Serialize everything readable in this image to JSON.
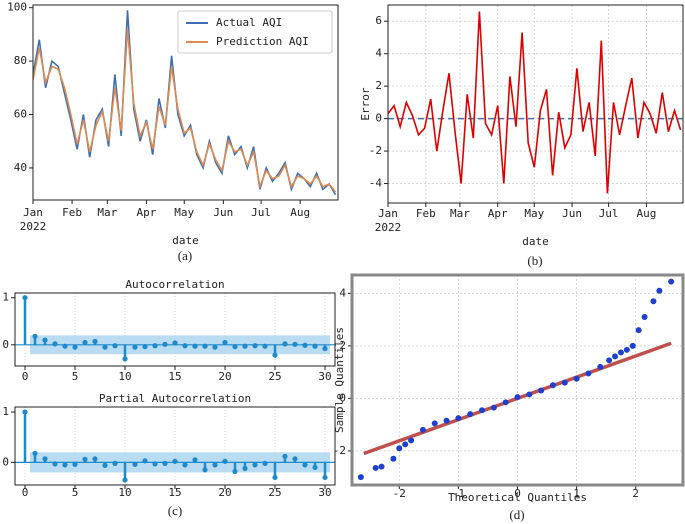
{
  "chart_data": [
    {
      "type": "line",
      "caption": "(a)",
      "xlabel": "date",
      "x_sublabel": "2022",
      "x": [
        0,
        5,
        10,
        15,
        20,
        25,
        30,
        35,
        40,
        45,
        50,
        55,
        60,
        65,
        70,
        75,
        80,
        85,
        90,
        95,
        100,
        105,
        110,
        115,
        120,
        125,
        130,
        135,
        140,
        145,
        150,
        155,
        160,
        165,
        170,
        175,
        180,
        185,
        190,
        195,
        200,
        205,
        210,
        215,
        220,
        225,
        230,
        235,
        240
      ],
      "series": [
        {
          "name": "Actual AQI",
          "color": "#3d6fb6",
          "values": [
            75,
            88,
            70,
            80,
            78,
            68,
            58,
            47,
            60,
            44,
            58,
            62,
            48,
            75,
            52,
            99,
            62,
            50,
            58,
            45,
            66,
            55,
            82,
            60,
            52,
            56,
            45,
            40,
            50,
            42,
            38,
            52,
            45,
            48,
            40,
            48,
            32,
            40,
            35,
            38,
            42,
            32,
            38,
            36,
            33,
            38,
            32,
            34,
            30
          ]
        },
        {
          "name": "Prediction AQI",
          "color": "#e08a4f",
          "values": [
            73,
            85,
            72,
            78,
            77,
            70,
            60,
            49,
            58,
            46,
            56,
            61,
            50,
            70,
            54,
            92,
            64,
            52,
            57,
            47,
            63,
            56,
            78,
            62,
            53,
            55,
            46,
            41,
            49,
            43,
            39,
            50,
            46,
            47,
            41,
            46,
            33,
            39,
            36,
            37,
            41,
            33,
            37,
            36,
            34,
            37,
            33,
            34,
            31
          ]
        }
      ],
      "xlim": [
        0,
        242
      ],
      "xticks": [
        {
          "value": 0,
          "label": "Jan"
        },
        {
          "value": 31,
          "label": "Feb"
        },
        {
          "value": 59,
          "label": "Mar"
        },
        {
          "value": 90,
          "label": "Apr"
        },
        {
          "value": 120,
          "label": "May"
        },
        {
          "value": 151,
          "label": "Jun"
        },
        {
          "value": 181,
          "label": "Jul"
        },
        {
          "value": 212,
          "label": "Aug"
        }
      ],
      "ylim": [
        28,
        101
      ],
      "yticks": [
        40,
        60,
        80,
        100
      ],
      "grid": false,
      "legend": "upper right"
    },
    {
      "type": "line",
      "caption": "(b)",
      "xlabel": "date",
      "x_sublabel": "2022",
      "ylabel": "Error",
      "x": [
        0,
        5,
        10,
        15,
        20,
        25,
        30,
        35,
        40,
        45,
        50,
        55,
        60,
        65,
        70,
        75,
        80,
        85,
        90,
        95,
        100,
        105,
        110,
        115,
        120,
        125,
        130,
        135,
        140,
        145,
        150,
        155,
        160,
        165,
        170,
        175,
        180,
        185,
        190,
        195,
        200,
        205,
        210,
        215,
        220,
        225,
        230,
        235,
        240
      ],
      "series": [
        {
          "color": "#e00000",
          "values": [
            0.3,
            0.8,
            -0.5,
            1.0,
            0.2,
            -1.0,
            -0.6,
            1.2,
            -2.0,
            0.5,
            2.8,
            -0.8,
            -4.0,
            1.5,
            -1.2,
            6.6,
            -0.3,
            -1.0,
            0.8,
            -4.0,
            2.6,
            -0.5,
            5.3,
            -1.5,
            -3.0,
            0.5,
            1.8,
            -3.5,
            0.4,
            -1.8,
            -1.0,
            3.1,
            -0.8,
            1.0,
            -2.3,
            4.8,
            -4.6,
            1.0,
            -1.0,
            0.8,
            2.5,
            -1.2,
            1.0,
            0.3,
            -0.9,
            1.6,
            -0.8,
            0.5,
            -0.7
          ]
        }
      ],
      "reference_line": 0,
      "reference_color": "#4a6fa5",
      "xlim": [
        0,
        242
      ],
      "xticks": [
        {
          "value": 0,
          "label": "Jan"
        },
        {
          "value": 31,
          "label": "Feb"
        },
        {
          "value": 59,
          "label": "Mar"
        },
        {
          "value": 90,
          "label": "Apr"
        },
        {
          "value": 120,
          "label": "May"
        },
        {
          "value": 151,
          "label": "Jun"
        },
        {
          "value": 181,
          "label": "Jul"
        },
        {
          "value": 212,
          "label": "Aug"
        }
      ],
      "ylim": [
        -5.2,
        7
      ],
      "yticks": [
        -4,
        -2,
        0,
        2,
        4,
        6
      ],
      "grid": true
    },
    {
      "type": "stem",
      "title": "Autocorrelation",
      "caption": "(c)",
      "color": "#1f8ac9",
      "band_color": "#a9d3ef",
      "conf_band": 0.2,
      "x": [
        0,
        1,
        2,
        3,
        4,
        5,
        6,
        7,
        8,
        9,
        10,
        11,
        12,
        13,
        14,
        15,
        16,
        17,
        18,
        19,
        20,
        21,
        22,
        23,
        24,
        25,
        26,
        27,
        28,
        29,
        30
      ],
      "values": [
        1,
        0.18,
        0.1,
        0.02,
        -0.03,
        -0.05,
        0.05,
        0.07,
        -0.05,
        -0.02,
        -0.3,
        -0.05,
        -0.04,
        -0.02,
        0.01,
        0.04,
        -0.02,
        -0.03,
        -0.03,
        -0.05,
        0.05,
        -0.04,
        -0.03,
        -0.02,
        -0.03,
        -0.22,
        0.02,
        0.01,
        -0.01,
        -0.03,
        -0.08
      ],
      "xlim": [
        -1,
        31
      ],
      "xticks": [
        0,
        5,
        10,
        15,
        20,
        25,
        30
      ],
      "ylim": [
        -0.45,
        1.1
      ],
      "yticks": [
        0,
        1
      ],
      "grid": true
    },
    {
      "type": "stem",
      "title": "Partial Autocorrelation",
      "color": "#1f8ac9",
      "band_color": "#a9d3ef",
      "conf_band": 0.2,
      "x": [
        0,
        1,
        2,
        3,
        4,
        5,
        6,
        7,
        8,
        9,
        10,
        11,
        12,
        13,
        14,
        15,
        16,
        17,
        18,
        19,
        20,
        21,
        22,
        23,
        24,
        25,
        26,
        27,
        28,
        29,
        30
      ],
      "values": [
        1,
        0.18,
        0.07,
        -0.03,
        -0.05,
        -0.04,
        0.06,
        0.07,
        -0.06,
        -0.02,
        -0.35,
        -0.04,
        0.03,
        -0.03,
        -0.02,
        0.02,
        -0.05,
        0.05,
        -0.15,
        -0.05,
        0.02,
        -0.18,
        -0.12,
        -0.05,
        -0.02,
        -0.3,
        0.12,
        0.07,
        -0.05,
        -0.1,
        -0.3
      ],
      "xlim": [
        -1,
        31
      ],
      "xticks": [
        0,
        5,
        10,
        15,
        20,
        25,
        30
      ],
      "ylim": [
        -0.45,
        1.1
      ],
      "yticks": [
        0,
        1
      ],
      "grid": true
    },
    {
      "type": "scatter",
      "caption": "(d)",
      "xlabel": "Theoretical Quantiles",
      "ylabel": "Sample Quantiles",
      "color": "#1f3fd0",
      "x": [
        -2.65,
        -2.4,
        -2.3,
        -2.1,
        -2.0,
        -1.9,
        -1.8,
        -1.6,
        -1.4,
        -1.2,
        -1.0,
        -0.8,
        -0.6,
        -0.4,
        -0.2,
        0,
        0.2,
        0.4,
        0.6,
        0.8,
        1.0,
        1.2,
        1.4,
        1.55,
        1.65,
        1.75,
        1.85,
        1.95,
        2.05,
        2.15,
        2.3,
        2.4,
        2.6
      ],
      "values": [
        -3.0,
        -2.65,
        -2.6,
        -2.3,
        -1.9,
        -1.75,
        -1.6,
        -1.2,
        -0.95,
        -0.85,
        -0.75,
        -0.6,
        -0.45,
        -0.35,
        -0.15,
        0.05,
        0.15,
        0.3,
        0.5,
        0.6,
        0.75,
        0.95,
        1.2,
        1.45,
        1.6,
        1.75,
        1.85,
        2.0,
        2.6,
        3.1,
        3.7,
        4.1,
        4.45
      ],
      "fit_line": {
        "x": [
          -2.6,
          2.6
        ],
        "y": [
          -2.1,
          2.1
        ],
        "color": "#c0504d"
      },
      "xlim": [
        -2.8,
        2.8
      ],
      "xticks": [
        -2,
        -1,
        0,
        1,
        2
      ],
      "ylim": [
        -3.3,
        4.7
      ],
      "yticks": [
        -2,
        0,
        2,
        4
      ],
      "grid": true
    }
  ]
}
